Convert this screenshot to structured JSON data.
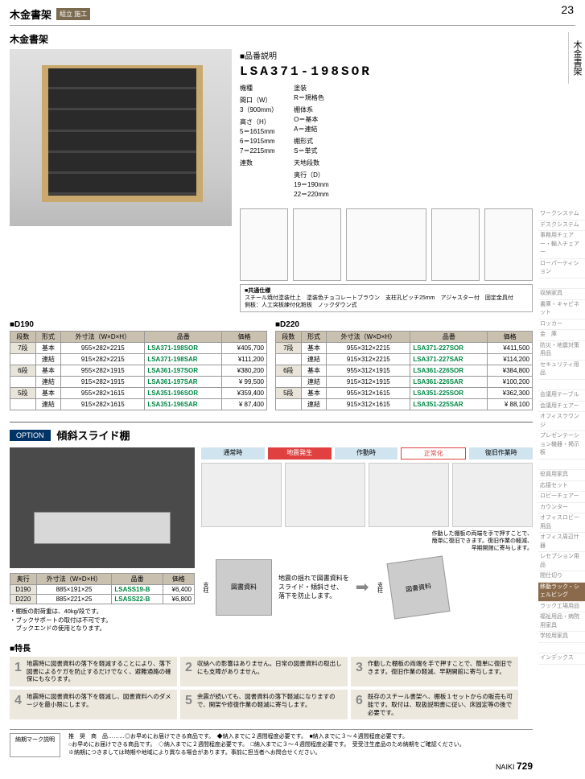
{
  "page_number_top": "23",
  "header": {
    "title": "木金書架",
    "badge": "組立\n施工"
  },
  "side_tab": "木金書架",
  "subtitle": "木金書架",
  "model_section": {
    "label": "■品番説明",
    "code": "LSA371-198SOR",
    "left_specs": [
      "機種",
      "間口（W）\n3（900mm）",
      "高さ（H）\n5＝1615mm\n6＝1915mm\n7＝2215mm",
      "連数"
    ],
    "right_specs": [
      "塗装\nR＝規格色",
      "棚体系\nO＝基本\nA＝連結",
      "棚形式\nS＝単式",
      "天地段数",
      "奥行（D）\n19＝190mm\n22＝220mm"
    ]
  },
  "common_spec": {
    "label": "■共通仕様",
    "text": "スチール焼付塗装仕上　塗装色チョコレートブラウン　支柱孔ピッチ25mm　アジャスター付　固定金具付\n側板：人工突板練付化粧板　ノックダウン式"
  },
  "d190": {
    "label": "■D190",
    "headers": [
      "段数",
      "形式",
      "外寸法（W×D×H）",
      "品番",
      "価格"
    ],
    "rows": [
      [
        "7段",
        "基本",
        "955×282×2215",
        "LSA371-198SOR",
        "¥405,700"
      ],
      [
        "",
        "連結",
        "915×282×2215",
        "LSA371-198SAR",
        "¥111,200"
      ],
      [
        "6段",
        "基本",
        "955×282×1915",
        "LSA361-197SOR",
        "¥380,200"
      ],
      [
        "",
        "連結",
        "915×282×1915",
        "LSA361-197SAR",
        "¥ 99,500"
      ],
      [
        "5段",
        "基本",
        "955×282×1615",
        "LSA351-196SOR",
        "¥359,400"
      ],
      [
        "",
        "連結",
        "915×282×1615",
        "LSA351-196SAR",
        "¥ 87,400"
      ]
    ]
  },
  "d220": {
    "label": "■D220",
    "headers": [
      "段数",
      "形式",
      "外寸法（W×D×H）",
      "品番",
      "価格"
    ],
    "rows": [
      [
        "7段",
        "基本",
        "955×312×2215",
        "LSA371-227SOR",
        "¥411,500"
      ],
      [
        "",
        "連結",
        "915×312×2215",
        "LSA371-227SAR",
        "¥114,200"
      ],
      [
        "6段",
        "基本",
        "955×312×1915",
        "LSA361-226SOR",
        "¥384,800"
      ],
      [
        "",
        "連結",
        "915×312×1915",
        "LSA361-226SAR",
        "¥100,200"
      ],
      [
        "5段",
        "基本",
        "955×312×1615",
        "LSA351-225SOR",
        "¥362,300"
      ],
      [
        "",
        "連結",
        "915×312×1615",
        "LSA351-225SAR",
        "¥ 88,100"
      ]
    ]
  },
  "option": {
    "badge": "OPTION",
    "title": "傾斜スライド棚",
    "flow_labels": [
      "通常時",
      "地震発生",
      "作動時",
      "正常化",
      "復旧作業時"
    ],
    "flow_caption": "作動した棚板の両端を手で押すことで、\n簡単に復旧できます。復旧作業の軽減、\n早期開館に寄与します。",
    "doc_label": "図書資料",
    "center_text": "地震の揺れで図書資料を\nスライド・傾斜させ、\n落下を防止します。",
    "doc_label2": "図書資料",
    "table": {
      "headers": [
        "奥行",
        "外寸法（W×D×H）",
        "品番",
        "価格"
      ],
      "rows": [
        [
          "D190",
          "885×191×25",
          "LSASS19-B",
          "¥6,400"
        ],
        [
          "D220",
          "885×221×25",
          "LSASS22-B",
          "¥6,800"
        ]
      ]
    },
    "notes": "・棚板の耐荷重は、40kg/段です。\n・ブックサポートの取付は不可です。\n　ブックエンドの使用となります。"
  },
  "features": {
    "label": "■特長",
    "items": [
      {
        "n": "1",
        "t": "地震時に図書資料の落下を軽減することにより、落下図書によるケガを防止するだけでなく、避難通路の確保にもなります。"
      },
      {
        "n": "2",
        "t": "収納への影響はありません。日常の図書資料の取出しにも支障がありません。"
      },
      {
        "n": "3",
        "t": "作動した棚板の両端を手で押すことで、簡単に復旧できます。復旧作業の軽減、早期開館に寄与します。"
      },
      {
        "n": "4",
        "t": "地震時に図書資料の落下を軽減し、図書資料へのダメージを最小限にします。"
      },
      {
        "n": "5",
        "t": "余震が続いても、図書資料の落下軽減になりますので、開架や修復作業の軽減に寄与します。"
      },
      {
        "n": "6",
        "t": "既存のスチール書架へ、棚板１セットからの販売も可能です。取付は、取扱説明書に従い、床固定等の後で必要です。"
      }
    ]
  },
  "side_categories": [
    "ワークシステム",
    "デスクシステム",
    "事務用チェアー・輸入チェアー",
    "ローパーティション",
    "",
    "収納家具",
    "書庫・キャビネット",
    "ロッカー",
    "金　庫",
    "防災・地震対策用品",
    "セキュリティ用品",
    "",
    "会議用テーブル",
    "会議用チェアー",
    "オフィスラウンジ",
    "プレゼンテーション機器・掲示板",
    "",
    "役員用家具",
    "応接セット",
    "ロビーチェアー",
    "カウンター",
    "オフィスロビー用品",
    "オフィス周辺什器",
    "レセプション用品",
    "間仕切り",
    "移動ラック・シェルビング",
    "ラック工場用品",
    "福祉用品・病院用家具",
    "学校用家具",
    "",
    "インデックス"
  ],
  "side_active_index": 25,
  "footer": {
    "label": "納期マーク説明",
    "lines": [
      "推　奨　商　品………◎お早めにお届けできる商品です。　◆納入までに２週間程度必要です。　■納入までに３〜４週間程度必要です。",
      "○お早めにお届けできる商品です。　◇納入までに２週間程度必要です。　□納入までに３〜４週間程度必要です。　受受注生産品のため納期をご確認ください。",
      "※納期につきましては時期や地域により異なる場合があります。事前に担当者へお問合せください。"
    ],
    "brand": "NAIKI",
    "page": "729"
  }
}
